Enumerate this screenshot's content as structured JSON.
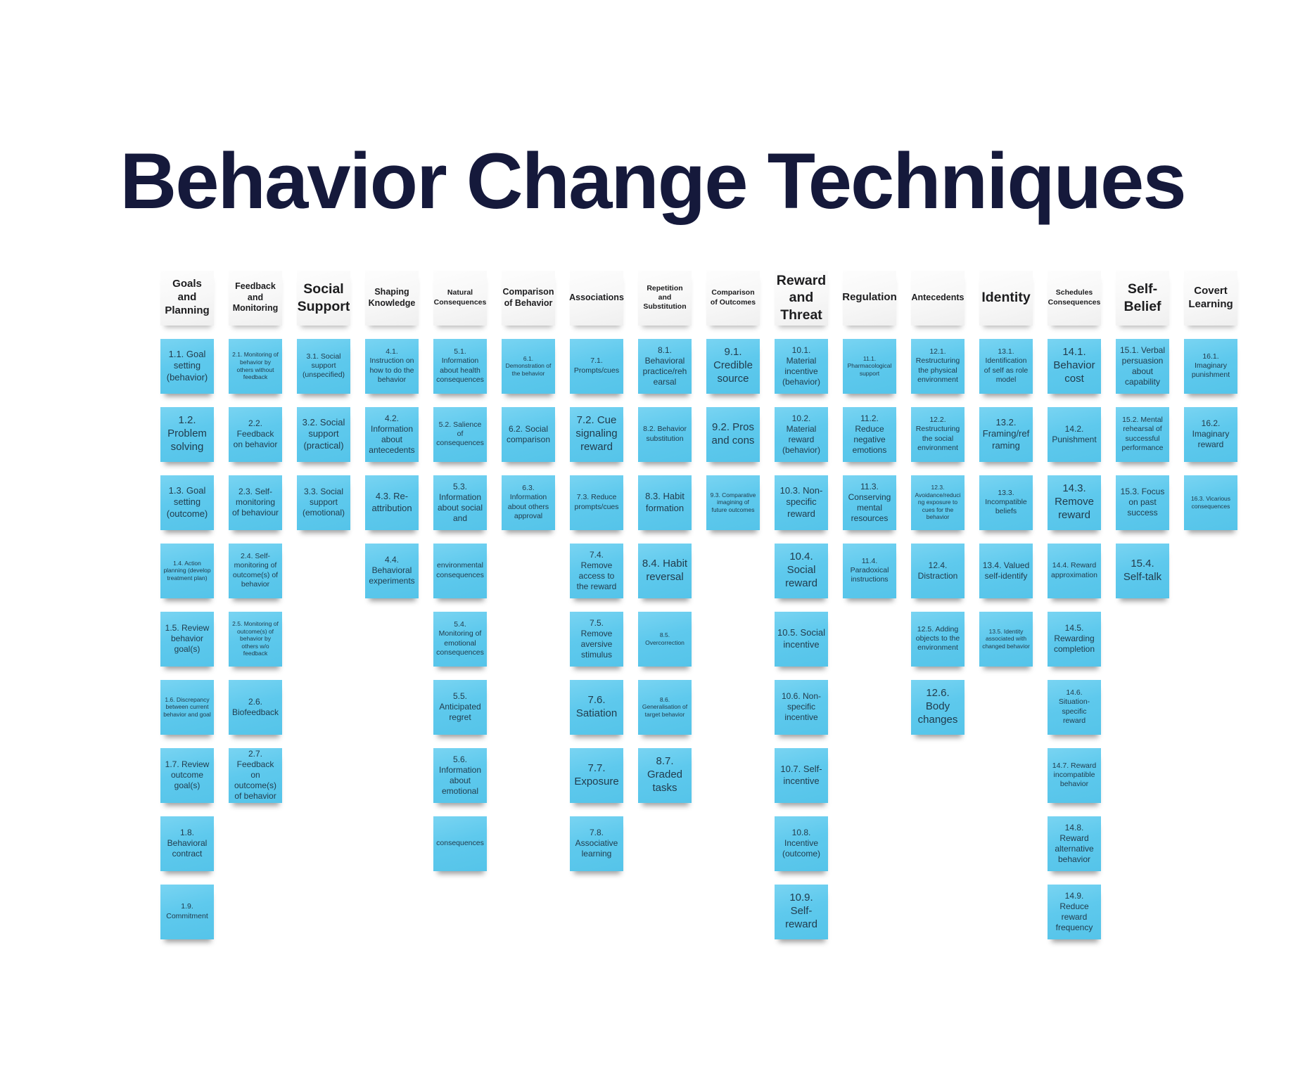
{
  "title": "Behavior Change Techniques",
  "board": {
    "colors": {
      "note_blue": "#5ec9ed",
      "note_white": "#f7f7f7",
      "note_text": "#223c4d",
      "header_text": "#1d1d1f",
      "title_color": "#15193b"
    },
    "columns": [
      {
        "header": {
          "label": "Goals and Planning",
          "size": "hm"
        },
        "notes": [
          {
            "label": "1.1. Goal setting (behavior)",
            "size": "ml"
          },
          {
            "label": "1.2. Problem solving",
            "size": "lg"
          },
          {
            "label": "1.3. Goal setting (outcome)",
            "size": "ml"
          },
          {
            "label": "1.4. Action planning (develop treatment plan)",
            "size": "xs"
          },
          {
            "label": "1.5. Review behavior goal(s)",
            "size": "md"
          },
          {
            "label": "1.6. Discrepancy between current behavior and goal",
            "size": "xs"
          },
          {
            "label": "1.7. Review outcome goal(s)",
            "size": "md"
          },
          {
            "label": "1.8. Behavioral contract",
            "size": "md"
          },
          {
            "label": "1.9. Commitment",
            "size": "sm"
          }
        ]
      },
      {
        "header": {
          "label": "Feedback and Monitoring",
          "size": "hs"
        },
        "notes": [
          {
            "label": "2.1. Monitoring of behavior by others without feedback",
            "size": "xs"
          },
          {
            "label": "2.2. Feedback on behavior",
            "size": "md"
          },
          {
            "label": "2.3. Self-monitoring of behaviour",
            "size": "md"
          },
          {
            "label": "2.4. Self-monitoring of outcome(s) of behavior",
            "size": "sm"
          },
          {
            "label": "2.5. Monitoring of outcome(s) of behavior by others w/o feedback",
            "size": "xs"
          },
          {
            "label": "2.6. Biofeedback",
            "size": "md"
          },
          {
            "label": "2.7. Feedback on outcome(s) of behavior",
            "size": "md"
          }
        ]
      },
      {
        "header": {
          "label": "Social Support",
          "size": "hl"
        },
        "notes": [
          {
            "label": "3.1. Social support (unspecified)",
            "size": "sm"
          },
          {
            "label": "3.2. Social support (practical)",
            "size": "ml"
          },
          {
            "label": "3.3. Social support (emotional)",
            "size": "md"
          }
        ]
      },
      {
        "header": {
          "label": "Shaping Knowledge",
          "size": "hs"
        },
        "notes": [
          {
            "label": "4.1. Instruction on how to do the behavior",
            "size": "sm"
          },
          {
            "label": "4.2. Information about antecedents",
            "size": "md"
          },
          {
            "label": "4.3. Re-attribution",
            "size": "ml"
          },
          {
            "label": "4.4. Behavioral experiments",
            "size": "md"
          }
        ]
      },
      {
        "header": {
          "label": "Natural Consequences",
          "size": "hxs"
        },
        "notes": [
          {
            "label": "5.1. Information about health consequences",
            "size": "sm"
          },
          {
            "label": "5.2. Salience of consequences",
            "size": "sm"
          },
          {
            "label": "5.3. Information about social and",
            "size": "md"
          },
          {
            "label": "environmental consequences",
            "size": "sm"
          },
          {
            "label": "5.4. Monitoring of emotional consequences",
            "size": "sm"
          },
          {
            "label": "5.5. Anticipated regret",
            "size": "md"
          },
          {
            "label": "5.6. Information about emotional",
            "size": "md"
          },
          {
            "label": "consequences",
            "size": "sm"
          }
        ]
      },
      {
        "header": {
          "label": "Comparison of Behavior",
          "size": "hs"
        },
        "notes": [
          {
            "label": "6.1. Demonstration of the behavior",
            "size": "xs"
          },
          {
            "label": "6.2. Social comparison",
            "size": "md"
          },
          {
            "label": "6.3. Information about others approval",
            "size": "sm"
          }
        ]
      },
      {
        "header": {
          "label": "Associations",
          "size": "hs"
        },
        "notes": [
          {
            "label": "7.1. Prompts/cues",
            "size": "sm"
          },
          {
            "label": "7.2. Cue signaling reward",
            "size": "lg"
          },
          {
            "label": "7.3. Reduce prompts/cues",
            "size": "sm"
          },
          {
            "label": "7.4. Remove access to the reward",
            "size": "md"
          },
          {
            "label": "7.5. Remove aversive stimulus",
            "size": "md"
          },
          {
            "label": "7.6. Satiation",
            "size": "lg"
          },
          {
            "label": "7.7. Exposure",
            "size": "lg"
          },
          {
            "label": "7.8. Associative learning",
            "size": "md"
          }
        ]
      },
      {
        "header": {
          "label": "Repetition and Substitution",
          "size": "hxs"
        },
        "notes": [
          {
            "label": "8.1. Behavioral practice/rehearsal",
            "size": "md"
          },
          {
            "label": "8.2. Behavior substitution",
            "size": "sm"
          },
          {
            "label": "8.3. Habit formation",
            "size": "ml"
          },
          {
            "label": "8.4. Habit reversal",
            "size": "lg"
          },
          {
            "label": "8.5. Overcorrection",
            "size": "xs"
          },
          {
            "label": "8.6. Generalisation of target behavior",
            "size": "xs"
          },
          {
            "label": "8.7. Graded tasks",
            "size": "lg"
          }
        ]
      },
      {
        "header": {
          "label": "Comparison of Outcomes",
          "size": "hxs"
        },
        "notes": [
          {
            "label": "9.1. Credible source",
            "size": "lg"
          },
          {
            "label": "9.2. Pros and cons",
            "size": "lg"
          },
          {
            "label": "9.3. Comparative imagining of future outcomes",
            "size": "xs"
          }
        ]
      },
      {
        "header": {
          "label": "Reward and Threat",
          "size": "hl"
        },
        "notes": [
          {
            "label": "10.1. Material incentive (behavior)",
            "size": "md"
          },
          {
            "label": "10.2. Material reward (behavior)",
            "size": "md"
          },
          {
            "label": "10.3. Non-specific reward",
            "size": "ml"
          },
          {
            "label": "10.4. Social reward",
            "size": "lg"
          },
          {
            "label": "10.5. Social incentive",
            "size": "ml"
          },
          {
            "label": "10.6. Non-specific incentive",
            "size": "md"
          },
          {
            "label": "10.7. Self-incentive",
            "size": "ml"
          },
          {
            "label": "10.8. Incentive (outcome)",
            "size": "md"
          },
          {
            "label": "10.9. Self-reward",
            "size": "lg"
          }
        ]
      },
      {
        "header": {
          "label": "Regulation",
          "size": "hm"
        },
        "notes": [
          {
            "label": "11.1. Pharmacological support",
            "size": "xs"
          },
          {
            "label": "11.2. Reduce negative emotions",
            "size": "md"
          },
          {
            "label": "11.3. Conserving mental resources",
            "size": "md"
          },
          {
            "label": "11.4. Paradoxical instructions",
            "size": "sm"
          }
        ]
      },
      {
        "header": {
          "label": "Antecedents",
          "size": "hs"
        },
        "notes": [
          {
            "label": "12.1. Restructuring the physical environment",
            "size": "sm"
          },
          {
            "label": "12.2. Restructuring the social environment",
            "size": "sm"
          },
          {
            "label": "12.3. Avoidance/reducing exposure to cues for the behavior",
            "size": "xs"
          },
          {
            "label": "12.4. Distraction",
            "size": "md"
          },
          {
            "label": "12.5. Adding objects to the environment",
            "size": "sm"
          },
          {
            "label": "12.6. Body changes",
            "size": "lg"
          }
        ]
      },
      {
        "header": {
          "label": "Identity",
          "size": "hl"
        },
        "notes": [
          {
            "label": "13.1. Identification of self as role model",
            "size": "sm"
          },
          {
            "label": "13.2. Framing/reframing",
            "size": "ml"
          },
          {
            "label": "13.3. Incompatible beliefs",
            "size": "sm"
          },
          {
            "label": "13.4. Valued self-identify",
            "size": "md"
          },
          {
            "label": "13.5. Identity associated with changed behavior",
            "size": "xs"
          }
        ]
      },
      {
        "header": {
          "label": "Schedules Consequences",
          "size": "hxs"
        },
        "notes": [
          {
            "label": "14.1. Behavior cost",
            "size": "lg"
          },
          {
            "label": "14.2. Punishment",
            "size": "md"
          },
          {
            "label": "14.3. Remove reward",
            "size": "lg"
          },
          {
            "label": "14.4. Reward approximation",
            "size": "sm"
          },
          {
            "label": "14.5. Rewarding completion",
            "size": "md"
          },
          {
            "label": "14.6. Situation-specific reward",
            "size": "sm"
          },
          {
            "label": "14.7. Reward incompatible behavior",
            "size": "sm"
          },
          {
            "label": "14.8. Reward alternative behavior",
            "size": "md"
          },
          {
            "label": "14.9. Reduce reward frequency",
            "size": "md"
          }
        ]
      },
      {
        "header": {
          "label": "Self-Belief",
          "size": "hl"
        },
        "notes": [
          {
            "label": "15.1. Verbal persuasion about capability",
            "size": "md"
          },
          {
            "label": "15.2. Mental rehearsal of successful performance",
            "size": "sm"
          },
          {
            "label": "15.3. Focus on past success",
            "size": "md"
          },
          {
            "label": "15.4. Self-talk",
            "size": "lg"
          }
        ]
      },
      {
        "header": {
          "label": "Covert Learning",
          "size": "hm"
        },
        "notes": [
          {
            "label": "16.1. Imaginary punishment",
            "size": "sm"
          },
          {
            "label": "16.2. Imaginary reward",
            "size": "md"
          },
          {
            "label": "16.3. Vicarious consequences",
            "size": "xs"
          }
        ]
      }
    ]
  }
}
